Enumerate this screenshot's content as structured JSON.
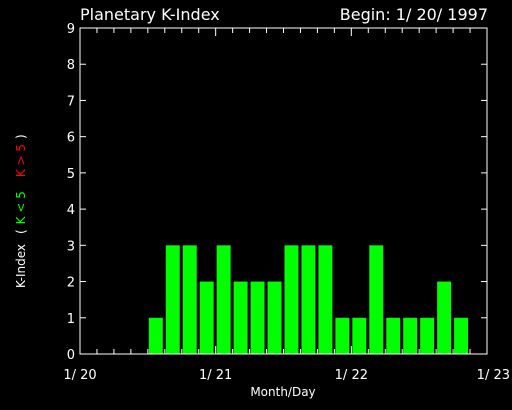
{
  "chart_data": {
    "type": "bar",
    "title": "Planetary K-Index",
    "begin_label": "Begin: 1/ 20/ 1997",
    "xlabel": "Month/Day",
    "ylabel": {
      "prefix": "K-Index",
      "open": "(",
      "green": "K < 5",
      "red": "K > 5",
      "close": ")"
    },
    "ylim": [
      0,
      9
    ],
    "yticks": [
      "0",
      "1",
      "2",
      "3",
      "4",
      "5",
      "6",
      "7",
      "8",
      "9"
    ],
    "xticks": [
      "1/ 20",
      "1/ 21",
      "1/ 22",
      "1/ 23"
    ],
    "bars_per_day": 8,
    "values": [
      0,
      0,
      0,
      0,
      1,
      3,
      3,
      2,
      3,
      2,
      2,
      2,
      3,
      3,
      3,
      1,
      1,
      3,
      1,
      1,
      1,
      2,
      1,
      0
    ],
    "colors": {
      "low": "#00ff00",
      "high": "#ff0000",
      "axes": "#ffffff",
      "background": "#000000"
    }
  }
}
